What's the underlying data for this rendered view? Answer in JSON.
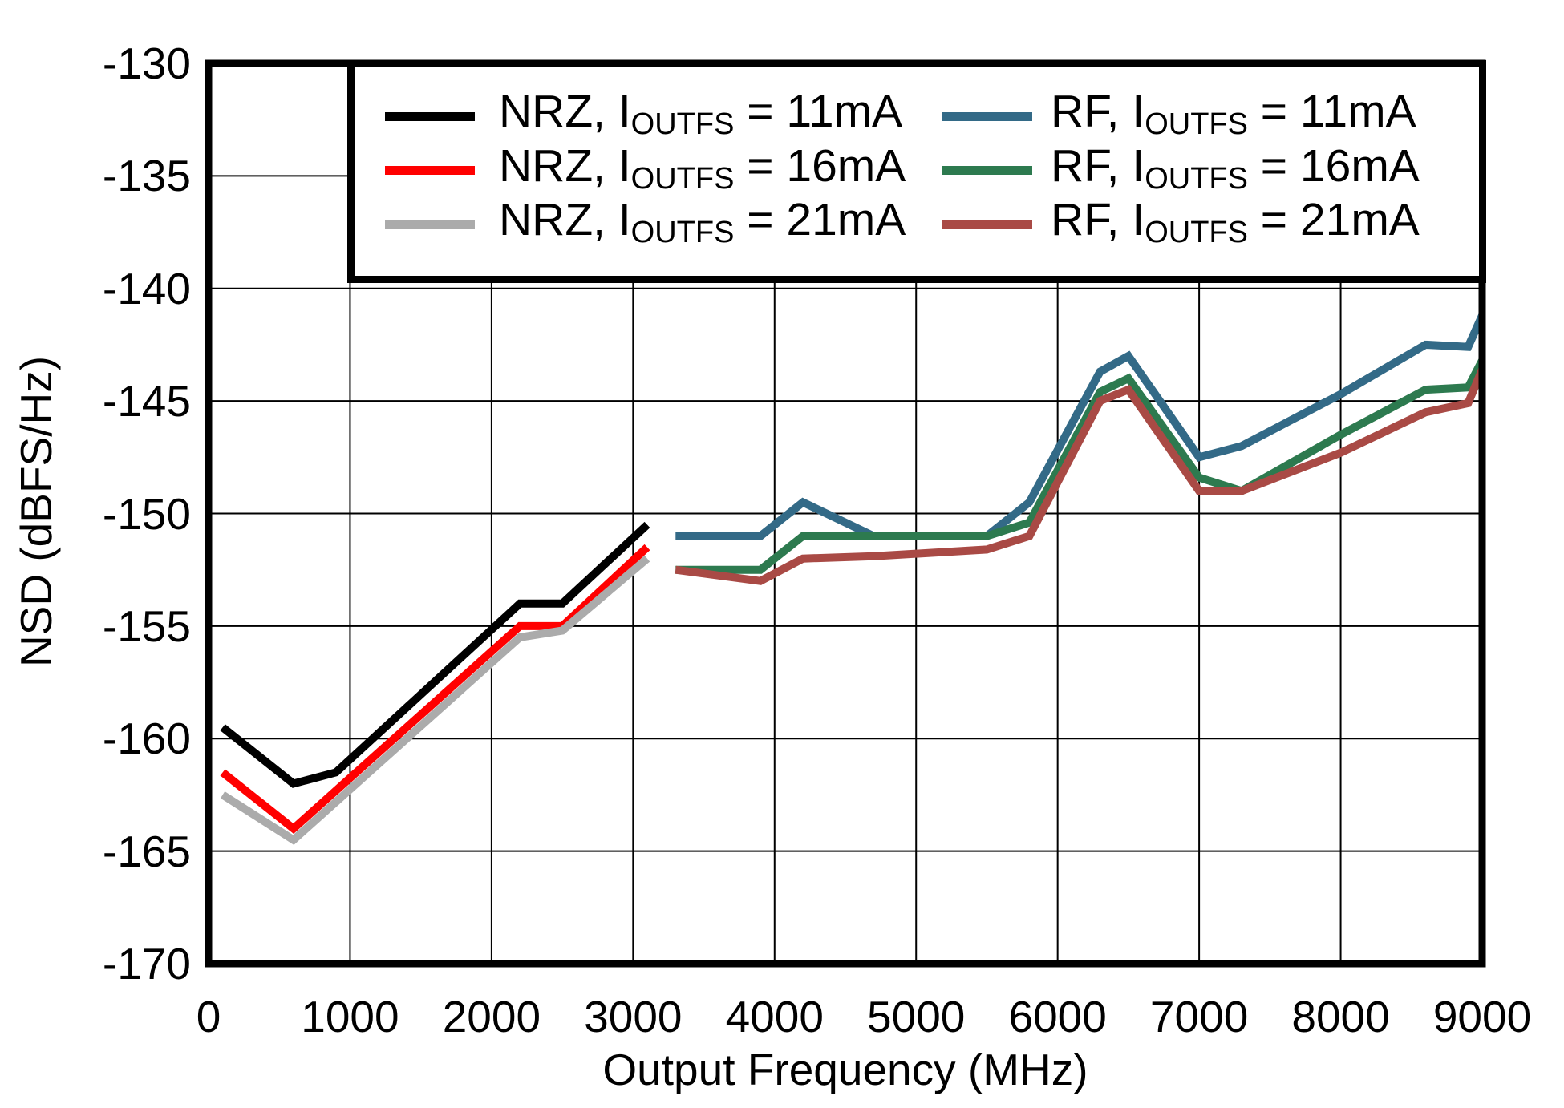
{
  "chart_data": {
    "type": "line",
    "title": "",
    "xlabel": "Output Frequency (MHz)",
    "ylabel": "NSD (dBFS/Hz)",
    "xlim": [
      0,
      9000
    ],
    "ylim": [
      -170,
      -130
    ],
    "x_ticks": [
      0,
      1000,
      2000,
      3000,
      4000,
      5000,
      6000,
      7000,
      8000,
      9000
    ],
    "y_ticks": [
      -130,
      -135,
      -140,
      -145,
      -150,
      -155,
      -160,
      -165,
      -170
    ],
    "grid": true,
    "grid_color": "#000000",
    "axis_color": "#000000",
    "background_color": "#FFFFFF",
    "legend_position": "top-inside",
    "series": [
      {
        "name": "NRZ, IOUTFS = 11mA",
        "label_prefix": "NRZ, I",
        "label_sub": "OUTFS",
        "label_suffix": " = 11mA",
        "color": "#000000",
        "points": [
          [
            100,
            -159.5
          ],
          [
            600,
            -162
          ],
          [
            900,
            -161.5
          ],
          [
            2200,
            -154
          ],
          [
            2500,
            -154
          ],
          [
            3100,
            -150.5
          ]
        ]
      },
      {
        "name": "NRZ, IOUTFS = 16mA",
        "label_prefix": "NRZ, I",
        "label_sub": "OUTFS",
        "label_suffix": " = 16mA",
        "color": "#FF0000",
        "points": [
          [
            100,
            -161.5
          ],
          [
            600,
            -164
          ],
          [
            2200,
            -155
          ],
          [
            2500,
            -155
          ],
          [
            3100,
            -151.5
          ]
        ]
      },
      {
        "name": "NRZ, IOUTFS = 21mA",
        "label_prefix": "NRZ, I",
        "label_sub": "OUTFS",
        "label_suffix": " = 21mA",
        "color": "#ABABAB",
        "points": [
          [
            100,
            -162.5
          ],
          [
            600,
            -164.5
          ],
          [
            2200,
            -155.5
          ],
          [
            2500,
            -155.2
          ],
          [
            3100,
            -152
          ]
        ]
      },
      {
        "name": "RF, IOUTFS = 11mA",
        "label_prefix": "RF, I",
        "label_sub": "OUTFS",
        "label_suffix": " = 11mA",
        "color": "#336A87",
        "points": [
          [
            3300,
            -151
          ],
          [
            3900,
            -151
          ],
          [
            4200,
            -149.5
          ],
          [
            4700,
            -151
          ],
          [
            5500,
            -151
          ],
          [
            5800,
            -149.5
          ],
          [
            6300,
            -143.7
          ],
          [
            6500,
            -143
          ],
          [
            7000,
            -147.5
          ],
          [
            7300,
            -147
          ],
          [
            8000,
            -144.7
          ],
          [
            8600,
            -142.5
          ],
          [
            8900,
            -142.6
          ],
          [
            9000,
            -141.2
          ]
        ]
      },
      {
        "name": "RF, IOUTFS = 16mA",
        "label_prefix": "RF, I",
        "label_sub": "OUTFS",
        "label_suffix": " = 16mA",
        "color": "#2D7A4F",
        "points": [
          [
            3300,
            -152.5
          ],
          [
            3900,
            -152.5
          ],
          [
            4200,
            -151
          ],
          [
            4700,
            -151
          ],
          [
            5500,
            -151
          ],
          [
            5800,
            -150.4
          ],
          [
            6300,
            -144.6
          ],
          [
            6500,
            -144
          ],
          [
            7000,
            -148.4
          ],
          [
            7300,
            -149
          ],
          [
            8000,
            -146.5
          ],
          [
            8600,
            -144.5
          ],
          [
            8900,
            -144.4
          ],
          [
            9000,
            -143.2
          ]
        ]
      },
      {
        "name": "RF, IOUTFS = 21mA",
        "label_prefix": "RF, I",
        "label_sub": "OUTFS",
        "label_suffix": " = 21mA",
        "color": "#A94A45",
        "points": [
          [
            3300,
            -152.5
          ],
          [
            3900,
            -153
          ],
          [
            4200,
            -152
          ],
          [
            4700,
            -151.9
          ],
          [
            5500,
            -151.6
          ],
          [
            5800,
            -151
          ],
          [
            6300,
            -145
          ],
          [
            6500,
            -144.5
          ],
          [
            7000,
            -149
          ],
          [
            7300,
            -149
          ],
          [
            8000,
            -147.3
          ],
          [
            8600,
            -145.5
          ],
          [
            8900,
            -145.1
          ],
          [
            9000,
            -143.6
          ]
        ]
      }
    ]
  }
}
